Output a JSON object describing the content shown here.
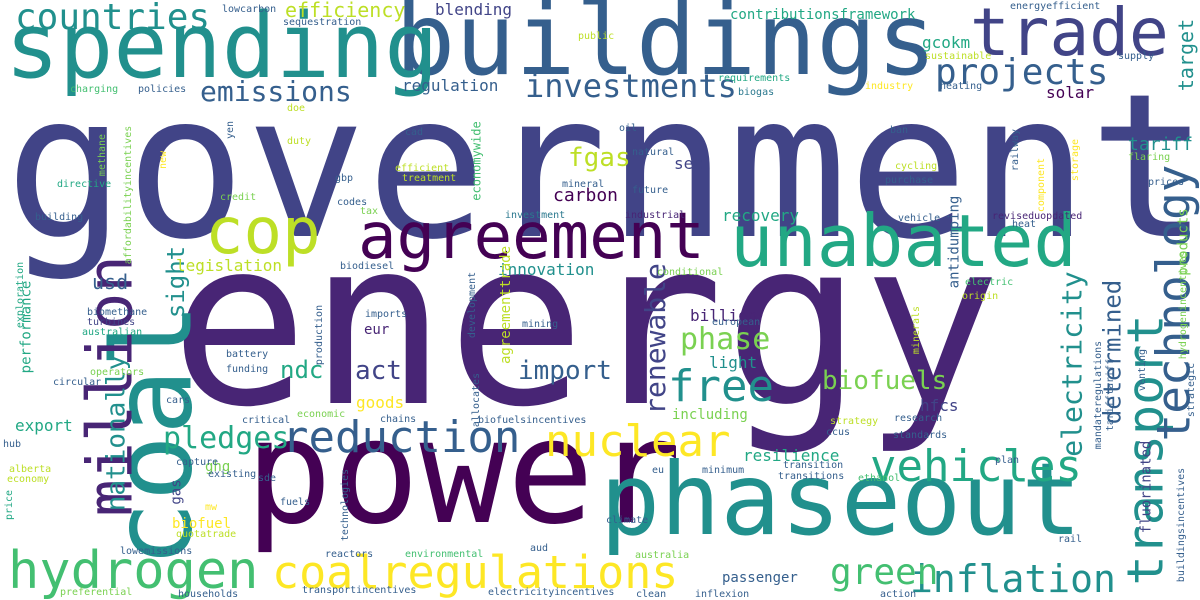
{
  "words": {
    "government": "government",
    "energy": "energy",
    "power": "power",
    "buildings": "buildings",
    "spending": "spending",
    "coal": "coal",
    "phaseout": "phaseout",
    "unabated": "unabated",
    "agreement": "agreement",
    "trade": "trade",
    "cop": "cop",
    "million": "million",
    "hydrogen": "hydrogen",
    "coalregulations": "coalregulations",
    "reduction": "reduction",
    "nuclear": "nuclear",
    "vehicles": "vehicles",
    "inflation": "inflation",
    "transport": "transport",
    "technology": "technology",
    "free": "free",
    "countries": "countries",
    "projects": "projects",
    "investments": "investments",
    "emissions": "emissions",
    "efficiency": "efficiency",
    "green": "green",
    "pledges": "pledges",
    "electricity": "electricity",
    "renewable": "renewable",
    "biofuels": "biofuels",
    "phase": "phase",
    "determined": "determined",
    "nationally": "nationally",
    "import": "import",
    "act": "act",
    "ndc": "ndc",
    "fgas": "fgas",
    "carbon": "carbon",
    "sight": "sight",
    "usd": "usd",
    "innovation": "innovation",
    "legislation": "legislation",
    "recovery": "recovery",
    "blending": "blending",
    "regulation": "regulation",
    "tariff": "tariff",
    "target": "target",
    "solar": "solar",
    "sec": "sec",
    "gcokm": "gcokm",
    "hfcs": "hfcs",
    "billion": "billion",
    "light": "light",
    "resilience": "resilience",
    "export": "export",
    "goods": "goods",
    "biofuel": "biofuel",
    "passenger": "passenger",
    "including": "including",
    "fluorinated": "fluorinated",
    "products": "products",
    "antidumping": "antidumping",
    "economywide": "economywide",
    "ghg": "ghg",
    "eur": "eur",
    "performance": "performance",
    "gas": "gas",
    "contributionsframework": "contributionsframework",
    "agreementtrade": "agreementtrade",
    "lowcarbon": "lowcarbon",
    "sequestration": "sequestration",
    "public": "public",
    "energyefficient": "energyefficient",
    "sustainable": "sustainable",
    "supply": "supply",
    "charging": "charging",
    "policies": "policies",
    "doe": "doe",
    "biogas": "biogas",
    "industry": "industry",
    "heating": "heating",
    "requirements": "requirements",
    "cad": "cad",
    "oil": "oil",
    "ban": "ban",
    "railway": "railway",
    "methane": "methane",
    "affordabilityincentives": "affordabilityincentives",
    "new": "new",
    "yen": "yen",
    "duty": "duty",
    "natural": "natural",
    "efficient": "efficient",
    "treatment": "treatment",
    "cycling": "cycling",
    "flaring": "flaring",
    "storage": "storage",
    "component": "component",
    "directive": "directive",
    "credit": "credit",
    "gbp": "gbp",
    "mineral": "mineral",
    "future": "future",
    "purchase": "purchase",
    "prices": "prices",
    "codes": "codes",
    "tax": "tax",
    "building": "building",
    "investment": "investment",
    "industrial": "industrial",
    "vehicle": "vehicle",
    "reviseduopdated": "reviseduopdated",
    "heat": "heat",
    "biodiesel": "biodiesel",
    "conditional": "conditional",
    "electric": "electric",
    "origin": "origin",
    "hydrogenincentives": "hydrogenincentives",
    "exploration": "exploration",
    "biomethane": "biomethane",
    "turbines": "turbines",
    "australian": "australian",
    "imports": "imports",
    "development": "development",
    "production": "production",
    "mining": "mining",
    "european": "european",
    "minerals": "minerals",
    "battery": "battery",
    "funding": "funding",
    "venting": "venting",
    "operators": "operators",
    "circular": "circular",
    "cars": "cars",
    "critical": "critical",
    "economic": "economic",
    "allocates": "allocates",
    "chains": "chains",
    "biofuelsincentives": "biofuelsincentives",
    "strategy": "strategy",
    "ccus": "ccus",
    "research": "research",
    "standards": "standards",
    "strategic": "strategic",
    "tarifftariff": "tarifftariff",
    "mandateregulations": "mandateregulations",
    "hub": "hub",
    "capture": "capture",
    "existing": "existing",
    "alberta": "alberta",
    "economy": "economy",
    "mw": "mw",
    "sde": "sde",
    "fuels": "fuels",
    "technologies": "technologies",
    "eu": "eu",
    "ethanol": "ethanol",
    "plan": "plan",
    "transition": "transition",
    "transitions": "transitions",
    "minimum": "minimum",
    "price": "price",
    "quotatrade": "quotatrade",
    "climate": "climate",
    "rail": "rail",
    "buildingsincentives": "buildingsincentives",
    "lowemissions": "lowemissions",
    "reactors": "reactors",
    "environmental": "environmental",
    "aud": "aud",
    "australia": "australia",
    "preferential": "preferential",
    "households": "households",
    "transportincentives": "transportincentives",
    "electricityincentives": "electricityincentives",
    "clean": "clean",
    "inflexion": "inflexion",
    "action": "action"
  },
  "colors": {
    "c0": "#440154",
    "c1": "#482575",
    "c2": "#414487",
    "c3": "#355f8d",
    "c4": "#2a788e",
    "c5": "#21908d",
    "c6": "#22a884",
    "c7": "#43bf71",
    "c8": "#7ad151",
    "c9": "#bddf26",
    "c10": "#fde725"
  }
}
